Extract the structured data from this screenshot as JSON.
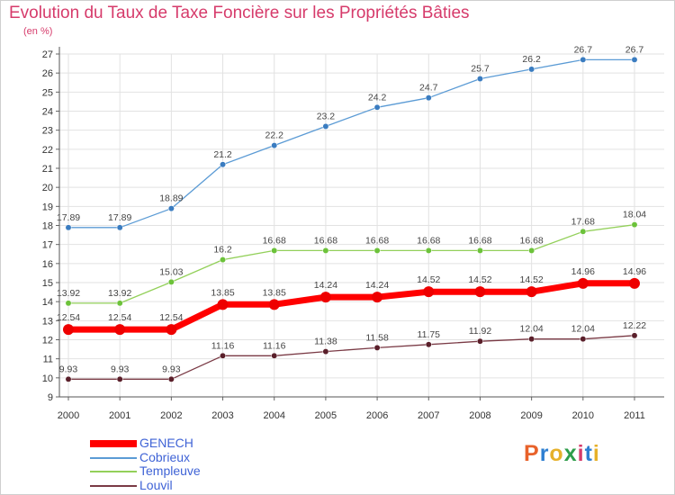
{
  "title": "Evolution du Taux de Taxe Foncière sur les Propriétés Bâties",
  "unit": "(en %)",
  "brand": {
    "text": "Proxiti",
    "colors": [
      "#e8622a",
      "#2e7fd1",
      "#e6b12b",
      "#2e9d4a",
      "#d63b6b",
      "#2e7fd1",
      "#e6b12b"
    ]
  },
  "chart_data": {
    "type": "line",
    "categories": [
      "2000",
      "2001",
      "2002",
      "2003",
      "2004",
      "2005",
      "2006",
      "2007",
      "2008",
      "2009",
      "2010",
      "2011"
    ],
    "ylim": [
      9,
      27
    ],
    "yticks": [
      "9",
      "10",
      "11",
      "12",
      "13",
      "14",
      "15",
      "16",
      "17",
      "18",
      "19",
      "20",
      "21",
      "22",
      "23",
      "24",
      "25",
      "26",
      "27"
    ],
    "grid": true,
    "legend_position": "bottom-left",
    "series": [
      {
        "name": "Cobrieux",
        "color": "#5b9bd5",
        "marker": "#3a7cc0",
        "width": 1.3,
        "values": [
          17.89,
          17.89,
          18.89,
          21.2,
          22.2,
          23.2,
          24.2,
          24.7,
          25.7,
          26.2,
          26.7,
          26.7
        ],
        "labels": [
          "17.89",
          "17.89",
          "18.89",
          "21.2",
          "22.2",
          "23.2",
          "24.2",
          "24.7",
          "25.7",
          "26.2",
          "26.7",
          "26.7"
        ]
      },
      {
        "name": "Templeuve",
        "color": "#93d05a",
        "marker": "#6cc23a",
        "width": 1.3,
        "values": [
          13.92,
          13.92,
          15.03,
          16.2,
          16.68,
          16.68,
          16.68,
          16.68,
          16.68,
          16.68,
          17.68,
          18.04
        ],
        "labels": [
          "13.92",
          "13.92",
          "15.03",
          "16.2",
          "16.68",
          "16.68",
          "16.68",
          "16.68",
          "16.68",
          "16.68",
          "17.68",
          "18.04"
        ]
      },
      {
        "name": "Louvil",
        "color": "#7a3a45",
        "marker": "#5a1f2a",
        "width": 1.3,
        "values": [
          9.93,
          9.93,
          9.93,
          11.16,
          11.16,
          11.38,
          11.58,
          11.75,
          11.92,
          12.04,
          12.04,
          12.22
        ],
        "labels": [
          "9.93",
          "9.93",
          "9.93",
          "11.16",
          "11.16",
          "11.38",
          "11.58",
          "11.75",
          "11.92",
          "12.04",
          "12.04",
          "12.22"
        ]
      },
      {
        "name": "GENECH",
        "color": "#ff0000",
        "marker": "#ee0000",
        "width": 7,
        "values": [
          12.54,
          12.54,
          12.54,
          13.85,
          13.85,
          14.24,
          14.24,
          14.52,
          14.52,
          14.52,
          14.96,
          14.96
        ],
        "labels": [
          "12.54",
          "12.54",
          "12.54",
          "13.85",
          "13.85",
          "14.24",
          "14.24",
          "14.52",
          "14.52",
          "14.52",
          "14.96",
          "14.96"
        ]
      }
    ],
    "legend_order": [
      "GENECH",
      "Cobrieux",
      "Templeuve",
      "Louvil"
    ]
  }
}
